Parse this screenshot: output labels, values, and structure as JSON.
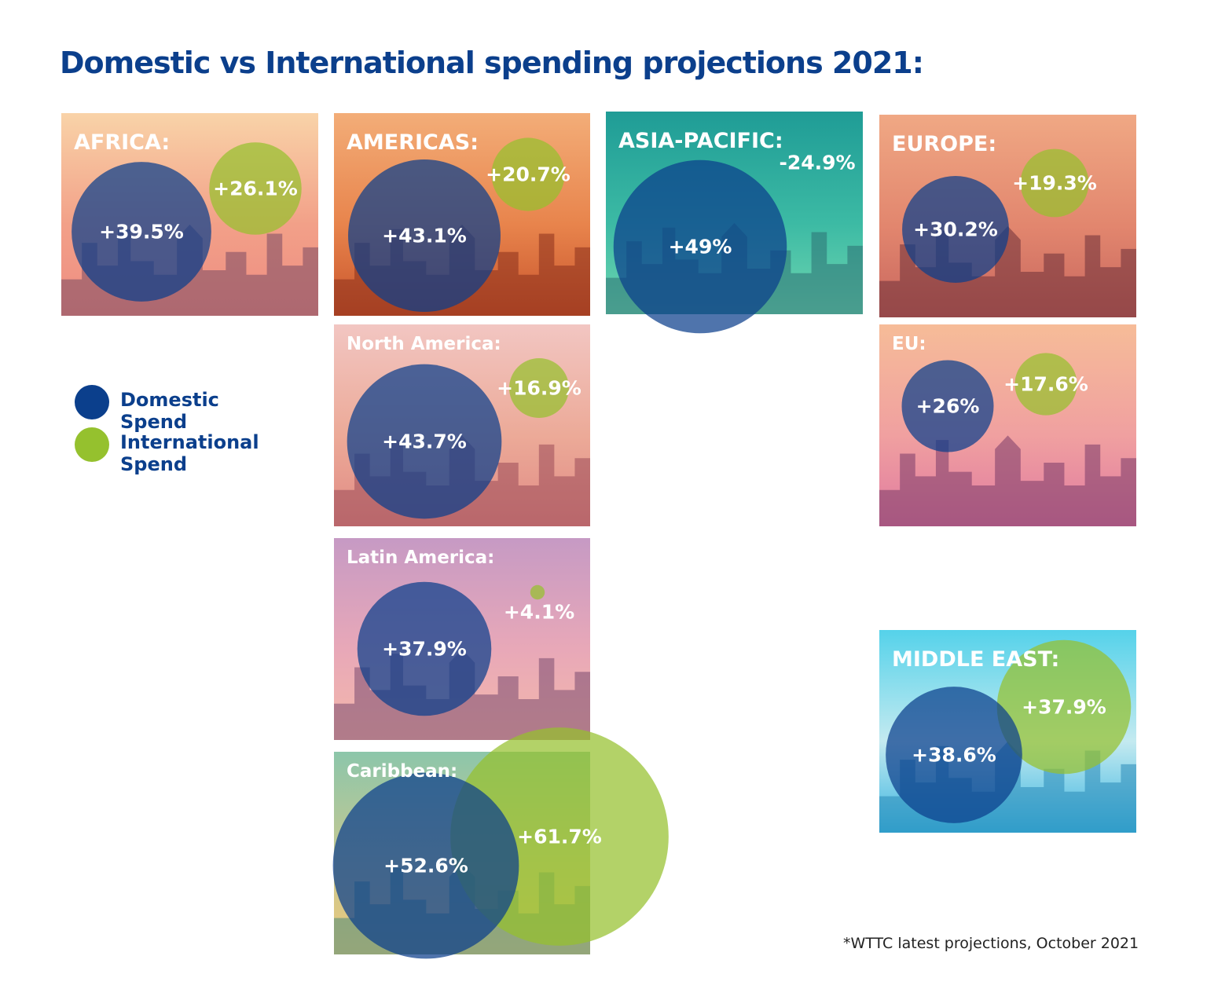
{
  "colors": {
    "domestic": "#0b3f8c",
    "international": "#95c12e",
    "title": "#0b3f8c"
  },
  "legend": {
    "domestic": "Domestic Spend",
    "international": "International Spend"
  },
  "footnote": "*WTTC latest projections, October 2021",
  "chart_data": {
    "type": "bubble",
    "title": "Domestic vs International spending projections 2021:",
    "series": [
      {
        "name": "Domestic Spend"
      },
      {
        "name": "International Spend"
      }
    ],
    "unit": "% change",
    "regions": [
      {
        "name": "AFRICA:",
        "domestic": 39.5,
        "international": 26.1,
        "domestic_label": "+39.5%",
        "international_label": "+26.1%"
      },
      {
        "name": "AMERICAS:",
        "domestic": 43.1,
        "international": 20.7,
        "domestic_label": "+43.1%",
        "international_label": "+20.7%"
      },
      {
        "name": "ASIA-PACIFIC:",
        "domestic": 49,
        "international": -24.9,
        "domestic_label": "+49%",
        "international_label": "-24.9%"
      },
      {
        "name": "EUROPE:",
        "domestic": 30.2,
        "international": 19.3,
        "domestic_label": "+30.2%",
        "international_label": "+19.3%"
      },
      {
        "name": "North America:",
        "domestic": 43.7,
        "international": 16.9,
        "domestic_label": "+43.7%",
        "international_label": "+16.9%"
      },
      {
        "name": "EU:",
        "domestic": 26,
        "international": 17.6,
        "domestic_label": "+26%",
        "international_label": "+17.6%"
      },
      {
        "name": "Latin America:",
        "domestic": 37.9,
        "international": 4.1,
        "domestic_label": "+37.9%",
        "international_label": "+4.1%"
      },
      {
        "name": "Caribbean:",
        "domestic": 52.6,
        "international": 61.7,
        "domestic_label": "+52.6%",
        "international_label": "+61.7%"
      },
      {
        "name": "MIDDLE EAST:",
        "domestic": 38.6,
        "international": 37.9,
        "domestic_label": "+38.6%",
        "international_label": "+37.9%"
      }
    ]
  }
}
